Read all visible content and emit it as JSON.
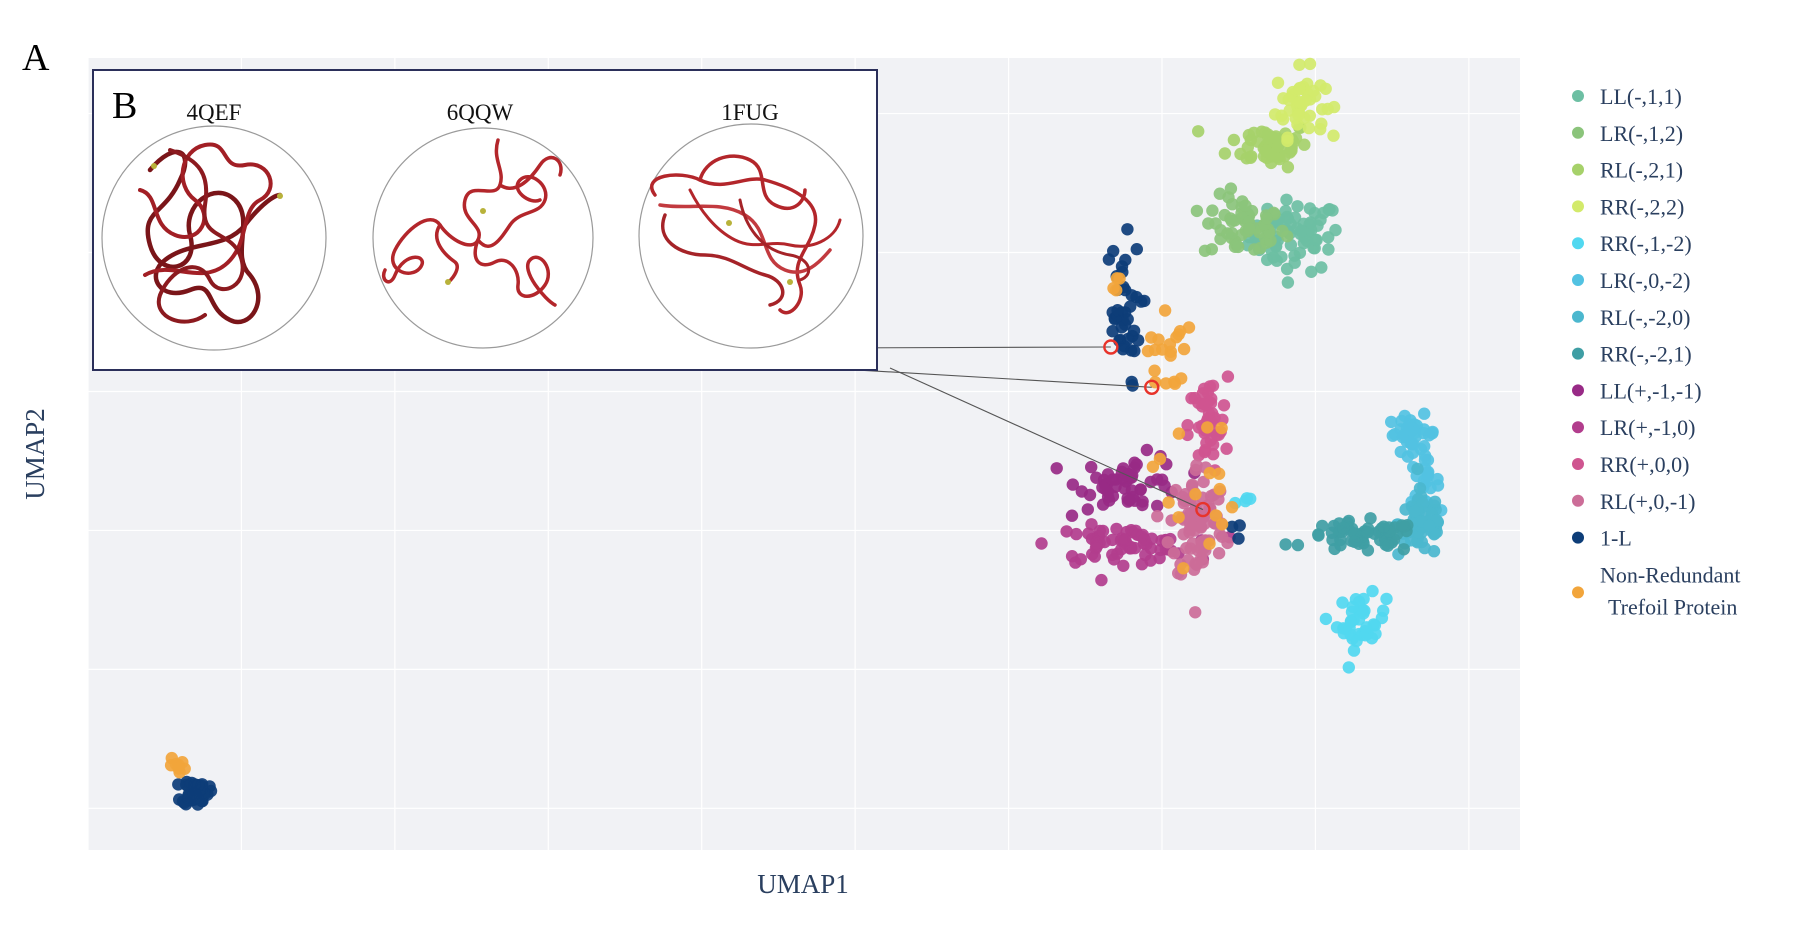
{
  "panel_labels": {
    "a": "A",
    "b": "B"
  },
  "colors": {
    "plot_bg": "#f1f2f5",
    "grid": "#ffffff",
    "axis_text": "#2a3f5f",
    "inset_border": "#2b2f5a",
    "protein_chain": "#b3262b",
    "highlight_ring": "#e8332a"
  },
  "inset": {
    "proteins": [
      {
        "id": "4QEF"
      },
      {
        "id": "6QQW"
      },
      {
        "id": "1FUG"
      }
    ]
  },
  "chart_data": {
    "type": "scatter",
    "title": "",
    "xlabel": "UMAP1",
    "ylabel": "UMAP2",
    "xlim": [
      0,
      14
    ],
    "ylim": [
      -0.3,
      5.4
    ],
    "grid": true,
    "legend_position": "right",
    "series": [
      {
        "name": "LL(-,1,1)",
        "color": "#6dbfa3",
        "clusters": [
          {
            "cx": 11.8,
            "cy": 4.12,
            "sx": 0.28,
            "sy": 0.16,
            "n": 70
          }
        ]
      },
      {
        "name": "LR(-,1,2)",
        "color": "#8bc47b",
        "clusters": [
          {
            "cx": 11.3,
            "cy": 4.18,
            "sx": 0.25,
            "sy": 0.14,
            "n": 55
          }
        ]
      },
      {
        "name": "RL(-,2,1)",
        "color": "#a6d16a",
        "clusters": [
          {
            "cx": 11.55,
            "cy": 4.78,
            "sx": 0.25,
            "sy": 0.1,
            "n": 55
          }
        ]
      },
      {
        "name": "RR(-,2,2)",
        "color": "#d3ea6b",
        "clusters": [
          {
            "cx": 11.85,
            "cy": 5.08,
            "sx": 0.15,
            "sy": 0.15,
            "n": 45
          }
        ]
      },
      {
        "name": "RR(-,1,-2)",
        "color": "#51d8f0",
        "clusters": [
          {
            "cx": 12.45,
            "cy": 1.34,
            "sx": 0.15,
            "sy": 0.12,
            "n": 40
          },
          {
            "cx": 11.3,
            "cy": 2.2,
            "sx": 0.1,
            "sy": 0.05,
            "n": 4
          }
        ]
      },
      {
        "name": "LR(-,0,-2)",
        "color": "#52c2e2",
        "clusters": [
          {
            "cx": 12.95,
            "cy": 2.7,
            "sx": 0.15,
            "sy": 0.08,
            "n": 35
          },
          {
            "cx": 13.05,
            "cy": 2.35,
            "sx": 0.1,
            "sy": 0.1,
            "n": 20
          }
        ]
      },
      {
        "name": "RL(-,-2,0)",
        "color": "#4bb7ce",
        "clusters": [
          {
            "cx": 13.05,
            "cy": 2.05,
            "sx": 0.15,
            "sy": 0.15,
            "n": 60
          }
        ]
      },
      {
        "name": "RR(-,-2,1)",
        "color": "#3f9ea4",
        "clusters": [
          {
            "cx": 12.45,
            "cy": 1.95,
            "sx": 0.35,
            "sy": 0.07,
            "n": 60
          }
        ]
      },
      {
        "name": "LL(+,-1,-1)",
        "color": "#982a86",
        "clusters": [
          {
            "cx": 10.2,
            "cy": 2.35,
            "sx": 0.32,
            "sy": 0.12,
            "n": 55
          }
        ]
      },
      {
        "name": "LR(+,-1,0)",
        "color": "#b23d8d",
        "clusters": [
          {
            "cx": 10.1,
            "cy": 1.9,
            "sx": 0.42,
            "sy": 0.08,
            "n": 70
          }
        ]
      },
      {
        "name": "RR(+,0,0)",
        "color": "#cf5590",
        "clusters": [
          {
            "cx": 10.95,
            "cy": 2.75,
            "sx": 0.12,
            "sy": 0.22,
            "n": 45
          }
        ]
      },
      {
        "name": "RL(+,0,-1)",
        "color": "#cc6d98",
        "clusters": [
          {
            "cx": 10.85,
            "cy": 2.05,
            "sx": 0.17,
            "sy": 0.28,
            "n": 85
          }
        ]
      },
      {
        "name": "1-L",
        "color": "#0d3d78",
        "clusters": [
          {
            "cx": 1.05,
            "cy": 0.12,
            "sx": 0.08,
            "sy": 0.06,
            "n": 45
          },
          {
            "cx": 10.1,
            "cy": 3.55,
            "sx": 0.12,
            "sy": 0.33,
            "n": 40
          },
          {
            "cx": 11.2,
            "cy": 2.0,
            "sx": 0.04,
            "sy": 0.04,
            "n": 3
          }
        ]
      },
      {
        "name": "Non-Redundant\nTrefoil Protein",
        "color": "#f2a53b",
        "clusters": [
          {
            "cx": 0.9,
            "cy": 0.3,
            "sx": 0.06,
            "sy": 0.04,
            "n": 8
          },
          {
            "cx": 10.55,
            "cy": 3.3,
            "sx": 0.12,
            "sy": 0.2,
            "n": 20
          },
          {
            "cx": 10.8,
            "cy": 2.35,
            "sx": 0.25,
            "sy": 0.35,
            "n": 16
          },
          {
            "cx": 10.05,
            "cy": 3.75,
            "sx": 0.05,
            "sy": 0.08,
            "n": 4
          }
        ]
      }
    ],
    "highlighted_points": [
      {
        "x": 10.0,
        "y": 3.32,
        "label": "4QEF"
      },
      {
        "x": 10.4,
        "y": 3.03,
        "label": "6QQW"
      },
      {
        "x": 10.9,
        "y": 2.15,
        "label": "1FUG"
      }
    ]
  }
}
